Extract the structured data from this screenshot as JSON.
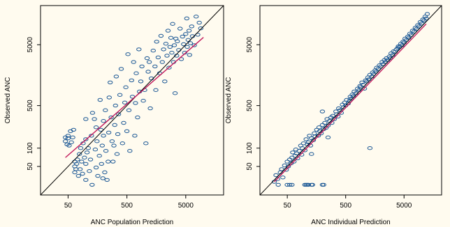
{
  "chart_data": [
    {
      "type": "scatter",
      "title": "",
      "xlabel": "ANC Population Prediction",
      "ylabel": "Observed ANC",
      "scale": "log",
      "xlim": [
        17,
        22000
      ],
      "ylim": [
        17,
        22000
      ],
      "xticks": [
        50,
        500,
        5000
      ],
      "yticks": [
        50,
        100,
        500,
        5000
      ],
      "reference_line": "identity (y = x)",
      "fit_line": {
        "color": "#c2185b",
        "x": [
          45,
          10000
        ],
        "y": [
          70,
          6600
        ]
      },
      "colors": {
        "points": "#1f5a96",
        "identity": "#000000",
        "fit": "#c2185b",
        "background": "#fffbef"
      },
      "points": [
        [
          45,
          130
        ],
        [
          45,
          150
        ],
        [
          48,
          115
        ],
        [
          50,
          145
        ],
        [
          50,
          160
        ],
        [
          52,
          110
        ],
        [
          55,
          190
        ],
        [
          57,
          125
        ],
        [
          60,
          150
        ],
        [
          62,
          200
        ],
        [
          65,
          40
        ],
        [
          65,
          50
        ],
        [
          65,
          60
        ],
        [
          68,
          45
        ],
        [
          70,
          55
        ],
        [
          72,
          65
        ],
        [
          75,
          35
        ],
        [
          78,
          80
        ],
        [
          80,
          45
        ],
        [
          82,
          100
        ],
        [
          85,
          60
        ],
        [
          88,
          38
        ],
        [
          90,
          120
        ],
        [
          95,
          70
        ],
        [
          100,
          300
        ],
        [
          100,
          140
        ],
        [
          100,
          55
        ],
        [
          100,
          30
        ],
        [
          105,
          85
        ],
        [
          110,
          100
        ],
        [
          115,
          42
        ],
        [
          120,
          65
        ],
        [
          125,
          160
        ],
        [
          128,
          25
        ],
        [
          130,
          380
        ],
        [
          140,
          300
        ],
        [
          145,
          95
        ],
        [
          150,
          220
        ],
        [
          150,
          48
        ],
        [
          155,
          130
        ],
        [
          160,
          35
        ],
        [
          170,
          75
        ],
        [
          175,
          620
        ],
        [
          180,
          200
        ],
        [
          185,
          55
        ],
        [
          190,
          110
        ],
        [
          195,
          32
        ],
        [
          200,
          280
        ],
        [
          200,
          160
        ],
        [
          210,
          40
        ],
        [
          215,
          420
        ],
        [
          220,
          90
        ],
        [
          230,
          30
        ],
        [
          240,
          60
        ],
        [
          245,
          180
        ],
        [
          250,
          680
        ],
        [
          260,
          1200
        ],
        [
          270,
          320
        ],
        [
          280,
          130
        ],
        [
          290,
          60
        ],
        [
          300,
          110
        ],
        [
          310,
          240
        ],
        [
          320,
          500
        ],
        [
          330,
          1500
        ],
        [
          340,
          80
        ],
        [
          350,
          170
        ],
        [
          360,
          360
        ],
        [
          380,
          750
        ],
        [
          400,
          2000
        ],
        [
          420,
          120
        ],
        [
          440,
          260
        ],
        [
          460,
          560
        ],
        [
          480,
          1000
        ],
        [
          500,
          190
        ],
        [
          520,
          3500
        ],
        [
          540,
          420
        ],
        [
          560,
          90
        ],
        [
          600,
          1300
        ],
        [
          620,
          700
        ],
        [
          650,
          2600
        ],
        [
          680,
          160
        ],
        [
          700,
          550
        ],
        [
          720,
          1700
        ],
        [
          760,
          320
        ],
        [
          800,
          4200
        ],
        [
          820,
          850
        ],
        [
          860,
          1250
        ],
        [
          900,
          2200
        ],
        [
          950,
          600
        ],
        [
          1000,
          900
        ],
        [
          1050,
          120
        ],
        [
          1100,
          3000
        ],
        [
          1150,
          1800
        ],
        [
          1200,
          2600
        ],
        [
          1250,
          450
        ],
        [
          1300,
          1400
        ],
        [
          1400,
          4000
        ],
        [
          1500,
          2200
        ],
        [
          1550,
          900
        ],
        [
          1600,
          5600
        ],
        [
          1700,
          3100
        ],
        [
          1800,
          1700
        ],
        [
          1900,
          7000
        ],
        [
          2000,
          2600
        ],
        [
          2100,
          4200
        ],
        [
          2200,
          1250
        ],
        [
          2300,
          5200
        ],
        [
          2400,
          3300
        ],
        [
          2500,
          8500
        ],
        [
          2600,
          2100
        ],
        [
          2700,
          4600
        ],
        [
          2800,
          6500
        ],
        [
          2900,
          3700
        ],
        [
          3000,
          11000
        ],
        [
          3100,
          2600
        ],
        [
          3200,
          4900
        ],
        [
          3300,
          800
        ],
        [
          3400,
          6300
        ],
        [
          3500,
          3300
        ],
        [
          3600,
          5700
        ],
        [
          3800,
          4100
        ],
        [
          4000,
          9200
        ],
        [
          4200,
          2900
        ],
        [
          4400,
          6800
        ],
        [
          4600,
          5100
        ],
        [
          4800,
          3700
        ],
        [
          5000,
          7500
        ],
        [
          5200,
          13500
        ],
        [
          5300,
          4600
        ],
        [
          5500,
          6000
        ],
        [
          5700,
          8500
        ],
        [
          5800,
          3400
        ],
        [
          6000,
          5300
        ],
        [
          6300,
          10000
        ],
        [
          6500,
          6900
        ],
        [
          7000,
          4900
        ],
        [
          7500,
          14500
        ],
        [
          8000,
          7300
        ],
        [
          8500,
          11500
        ],
        [
          9000,
          9300
        ]
      ]
    },
    {
      "type": "scatter",
      "title": "",
      "xlabel": "ANC Individual Prediction",
      "ylabel": "Observed ANC",
      "scale": "log",
      "xlim": [
        17,
        22000
      ],
      "ylim": [
        17,
        22000
      ],
      "xticks": [
        50,
        500,
        5000
      ],
      "yticks": [
        50,
        100,
        500,
        5000
      ],
      "reference_line": "identity (y = x)",
      "fit_line": {
        "color": "#c2185b",
        "x": [
          30,
          12000
        ],
        "y": [
          28,
          11000
        ]
      },
      "colors": {
        "points": "#1f5a96",
        "identity": "#000000",
        "fit": "#c2185b",
        "background": "#fffbef"
      },
      "points": [
        [
          30,
          28
        ],
        [
          32,
          36
        ],
        [
          34,
          31
        ],
        [
          35,
          25
        ],
        [
          38,
          40
        ],
        [
          40,
          45
        ],
        [
          42,
          33
        ],
        [
          45,
          52
        ],
        [
          48,
          44
        ],
        [
          50,
          60
        ],
        [
          52,
          50
        ],
        [
          55,
          65
        ],
        [
          58,
          56
        ],
        [
          60,
          70
        ],
        [
          62,
          85
        ],
        [
          65,
          60
        ],
        [
          68,
          75
        ],
        [
          70,
          95
        ],
        [
          72,
          82
        ],
        [
          75,
          68
        ],
        [
          80,
          90
        ],
        [
          85,
          110
        ],
        [
          88,
          78
        ],
        [
          90,
          100
        ],
        [
          95,
          120
        ],
        [
          100,
          92
        ],
        [
          105,
          140
        ],
        [
          110,
          115
        ],
        [
          115,
          125
        ],
        [
          120,
          160
        ],
        [
          125,
          110
        ],
        [
          130,
          145
        ],
        [
          140,
          135
        ],
        [
          145,
          175
        ],
        [
          150,
          155
        ],
        [
          160,
          200
        ],
        [
          170,
          160
        ],
        [
          175,
          220
        ],
        [
          180,
          190
        ],
        [
          190,
          175
        ],
        [
          200,
          240
        ],
        [
          210,
          205
        ],
        [
          220,
          260
        ],
        [
          230,
          215
        ],
        [
          240,
          300
        ],
        [
          250,
          235
        ],
        [
          265,
          280
        ],
        [
          280,
          320
        ],
        [
          290,
          260
        ],
        [
          300,
          340
        ],
        [
          320,
          300
        ],
        [
          340,
          400
        ],
        [
          350,
          360
        ],
        [
          370,
          330
        ],
        [
          380,
          450
        ],
        [
          400,
          420
        ],
        [
          420,
          380
        ],
        [
          440,
          520
        ],
        [
          460,
          470
        ],
        [
          480,
          560
        ],
        [
          500,
          500
        ],
        [
          520,
          620
        ],
        [
          550,
          540
        ],
        [
          580,
          600
        ],
        [
          600,
          700
        ],
        [
          620,
          650
        ],
        [
          650,
          760
        ],
        [
          680,
          720
        ],
        [
          700,
          850
        ],
        [
          750,
          800
        ],
        [
          800,
          950
        ],
        [
          850,
          900
        ],
        [
          880,
          1050
        ],
        [
          900,
          1000
        ],
        [
          950,
          1200
        ],
        [
          1000,
          1100
        ],
        [
          1050,
          950
        ],
        [
          1100,
          1300
        ],
        [
          1150,
          1250
        ],
        [
          1200,
          1450
        ],
        [
          1250,
          1350
        ],
        [
          1300,
          1600
        ],
        [
          1400,
          1500
        ],
        [
          1450,
          1750
        ],
        [
          1500,
          1650
        ],
        [
          1600,
          1900
        ],
        [
          1650,
          1800
        ],
        [
          1700,
          2100
        ],
        [
          1800,
          2000
        ],
        [
          1900,
          2300
        ],
        [
          2000,
          2200
        ],
        [
          2100,
          2600
        ],
        [
          2200,
          2400
        ],
        [
          2300,
          2800
        ],
        [
          2400,
          2600
        ],
        [
          2500,
          3000
        ],
        [
          2600,
          2800
        ],
        [
          2800,
          3200
        ],
        [
          2900,
          3000
        ],
        [
          3000,
          3600
        ],
        [
          3200,
          3400
        ],
        [
          3300,
          3900
        ],
        [
          3500,
          3800
        ],
        [
          3700,
          4200
        ],
        [
          3900,
          4400
        ],
        [
          4000,
          4700
        ],
        [
          4200,
          4600
        ],
        [
          4400,
          5200
        ],
        [
          4600,
          4900
        ],
        [
          4800,
          5600
        ],
        [
          5000,
          5400
        ],
        [
          5200,
          6300
        ],
        [
          5500,
          6000
        ],
        [
          5800,
          6800
        ],
        [
          6000,
          6500
        ],
        [
          6300,
          7600
        ],
        [
          6600,
          7200
        ],
        [
          7000,
          8500
        ],
        [
          7400,
          8200
        ],
        [
          7800,
          9500
        ],
        [
          8200,
          9100
        ],
        [
          8600,
          10500
        ],
        [
          9000,
          10000
        ],
        [
          9500,
          11800
        ],
        [
          10000,
          11200
        ],
        [
          10500,
          13000
        ],
        [
          11000,
          12500
        ],
        [
          11500,
          14500
        ],
        [
          12000,
          13500
        ],
        [
          12500,
          16000
        ],
        [
          50,
          25
        ],
        [
          55,
          25
        ],
        [
          60,
          25
        ],
        [
          100,
          25
        ],
        [
          105,
          25
        ],
        [
          110,
          25
        ],
        [
          115,
          25
        ],
        [
          130,
          25
        ],
        [
          135,
          25
        ],
        [
          200,
          25
        ],
        [
          210,
          25
        ],
        [
          1300,
          100
        ],
        [
          130,
          80
        ],
        [
          200,
          400
        ],
        [
          250,
          150
        ]
      ]
    }
  ]
}
